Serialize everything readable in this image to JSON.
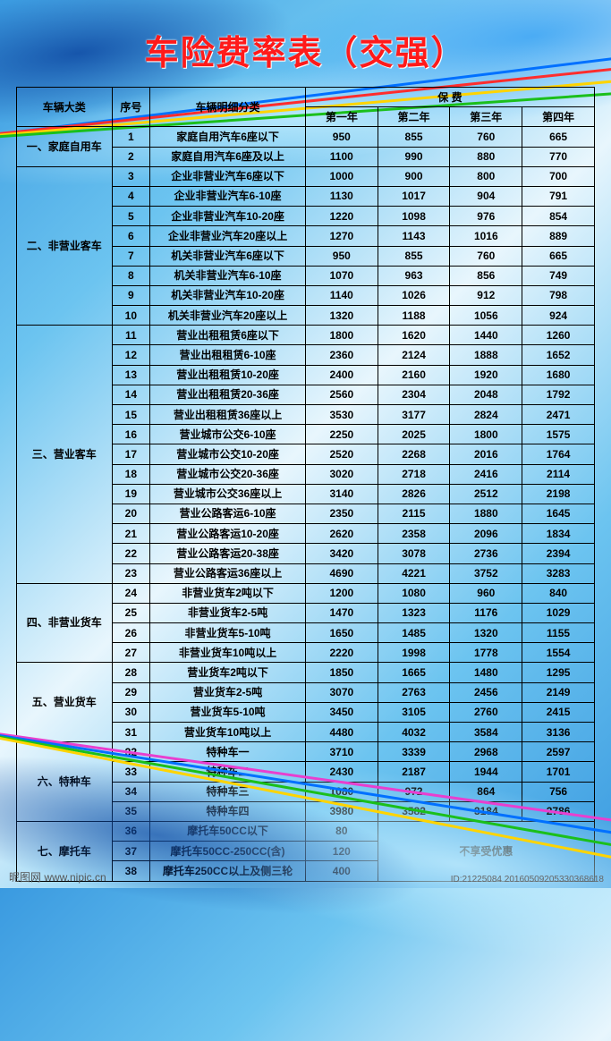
{
  "title": "车险费率表（交强）",
  "headers": {
    "category": "车辆大类",
    "index": "序号",
    "detail": "车辆明细分类",
    "premium": "保 费",
    "y1": "第一年",
    "y2": "第二年",
    "y3": "第三年",
    "y4": "第四年"
  },
  "groups": [
    {
      "label": "一、家庭自用车",
      "rows": [
        {
          "idx": "1",
          "desc": "家庭自用汽车6座以下",
          "v": [
            "950",
            "855",
            "760",
            "665"
          ]
        },
        {
          "idx": "2",
          "desc": "家庭自用汽车6座及以上",
          "v": [
            "1100",
            "990",
            "880",
            "770"
          ]
        }
      ]
    },
    {
      "label": "二、非营业客车",
      "rows": [
        {
          "idx": "3",
          "desc": "企业非营业汽车6座以下",
          "v": [
            "1000",
            "900",
            "800",
            "700"
          ]
        },
        {
          "idx": "4",
          "desc": "企业非营业汽车6-10座",
          "v": [
            "1130",
            "1017",
            "904",
            "791"
          ]
        },
        {
          "idx": "5",
          "desc": "企业非营业汽车10-20座",
          "v": [
            "1220",
            "1098",
            "976",
            "854"
          ]
        },
        {
          "idx": "6",
          "desc": "企业非营业汽车20座以上",
          "v": [
            "1270",
            "1143",
            "1016",
            "889"
          ]
        },
        {
          "idx": "7",
          "desc": "机关非营业汽车6座以下",
          "v": [
            "950",
            "855",
            "760",
            "665"
          ]
        },
        {
          "idx": "8",
          "desc": "机关非营业汽车6-10座",
          "v": [
            "1070",
            "963",
            "856",
            "749"
          ]
        },
        {
          "idx": "9",
          "desc": "机关非营业汽车10-20座",
          "v": [
            "1140",
            "1026",
            "912",
            "798"
          ]
        },
        {
          "idx": "10",
          "desc": "机关非营业汽车20座以上",
          "v": [
            "1320",
            "1188",
            "1056",
            "924"
          ]
        }
      ]
    },
    {
      "label": "三、营业客车",
      "rows": [
        {
          "idx": "11",
          "desc": "营业出租租赁6座以下",
          "v": [
            "1800",
            "1620",
            "1440",
            "1260"
          ]
        },
        {
          "idx": "12",
          "desc": "营业出租租赁6-10座",
          "v": [
            "2360",
            "2124",
            "1888",
            "1652"
          ]
        },
        {
          "idx": "13",
          "desc": "营业出租租赁10-20座",
          "v": [
            "2400",
            "2160",
            "1920",
            "1680"
          ]
        },
        {
          "idx": "14",
          "desc": "营业出租租赁20-36座",
          "v": [
            "2560",
            "2304",
            "2048",
            "1792"
          ]
        },
        {
          "idx": "15",
          "desc": "营业出租租赁36座以上",
          "v": [
            "3530",
            "3177",
            "2824",
            "2471"
          ]
        },
        {
          "idx": "16",
          "desc": "营业城市公交6-10座",
          "v": [
            "2250",
            "2025",
            "1800",
            "1575"
          ]
        },
        {
          "idx": "17",
          "desc": "营业城市公交10-20座",
          "v": [
            "2520",
            "2268",
            "2016",
            "1764"
          ]
        },
        {
          "idx": "18",
          "desc": "营业城市公交20-36座",
          "v": [
            "3020",
            "2718",
            "2416",
            "2114"
          ]
        },
        {
          "idx": "19",
          "desc": "营业城市公交36座以上",
          "v": [
            "3140",
            "2826",
            "2512",
            "2198"
          ]
        },
        {
          "idx": "20",
          "desc": "营业公路客运6-10座",
          "v": [
            "2350",
            "2115",
            "1880",
            "1645"
          ]
        },
        {
          "idx": "21",
          "desc": "营业公路客运10-20座",
          "v": [
            "2620",
            "2358",
            "2096",
            "1834"
          ]
        },
        {
          "idx": "22",
          "desc": "营业公路客运20-38座",
          "v": [
            "3420",
            "3078",
            "2736",
            "2394"
          ]
        },
        {
          "idx": "23",
          "desc": "营业公路客运36座以上",
          "v": [
            "4690",
            "4221",
            "3752",
            "3283"
          ]
        }
      ]
    },
    {
      "label": "四、非营业货车",
      "rows": [
        {
          "idx": "24",
          "desc": "非营业货车2吨以下",
          "v": [
            "1200",
            "1080",
            "960",
            "840"
          ]
        },
        {
          "idx": "25",
          "desc": "非营业货车2-5吨",
          "v": [
            "1470",
            "1323",
            "1176",
            "1029"
          ]
        },
        {
          "idx": "26",
          "desc": "非营业货车5-10吨",
          "v": [
            "1650",
            "1485",
            "1320",
            "1155"
          ]
        },
        {
          "idx": "27",
          "desc": "非营业货车10吨以上",
          "v": [
            "2220",
            "1998",
            "1778",
            "1554"
          ]
        }
      ]
    },
    {
      "label": "五、营业货车",
      "rows": [
        {
          "idx": "28",
          "desc": "营业货车2吨以下",
          "v": [
            "1850",
            "1665",
            "1480",
            "1295"
          ]
        },
        {
          "idx": "29",
          "desc": "营业货车2-5吨",
          "v": [
            "3070",
            "2763",
            "2456",
            "2149"
          ]
        },
        {
          "idx": "30",
          "desc": "营业货车5-10吨",
          "v": [
            "3450",
            "3105",
            "2760",
            "2415"
          ]
        },
        {
          "idx": "31",
          "desc": "营业货车10吨以上",
          "v": [
            "4480",
            "4032",
            "3584",
            "3136"
          ]
        }
      ]
    },
    {
      "label": "六、特种车",
      "rows": [
        {
          "idx": "32",
          "desc": "特种车一",
          "v": [
            "3710",
            "3339",
            "2968",
            "2597"
          ]
        },
        {
          "idx": "33",
          "desc": "特种车二",
          "v": [
            "2430",
            "2187",
            "1944",
            "1701"
          ]
        },
        {
          "idx": "34",
          "desc": "特种车三",
          "v": [
            "1080",
            "972",
            "864",
            "756"
          ]
        },
        {
          "idx": "35",
          "desc": "特种车四",
          "v": [
            "3980",
            "3582",
            "3184",
            "2786"
          ]
        }
      ]
    },
    {
      "label": "七、摩托车",
      "rows": [
        {
          "idx": "36",
          "desc": "摩托车50CC以下",
          "v": [
            "80"
          ],
          "merge": true
        },
        {
          "idx": "37",
          "desc": "摩托车50CC-250CC(含)",
          "v": [
            "120"
          ]
        },
        {
          "idx": "38",
          "desc": "摩托车250CC以上及侧三轮",
          "v": [
            "400"
          ]
        }
      ]
    }
  ],
  "no_discount": "不享受优惠",
  "footer": {
    "brand": "昵图网 www.nipic.cn",
    "meta": "ID:21225084  20160509205330368618"
  },
  "style": {
    "title_color": "#ff1a1a",
    "border_color": "#000000",
    "font_size_cell": 12,
    "font_size_title": 38
  }
}
